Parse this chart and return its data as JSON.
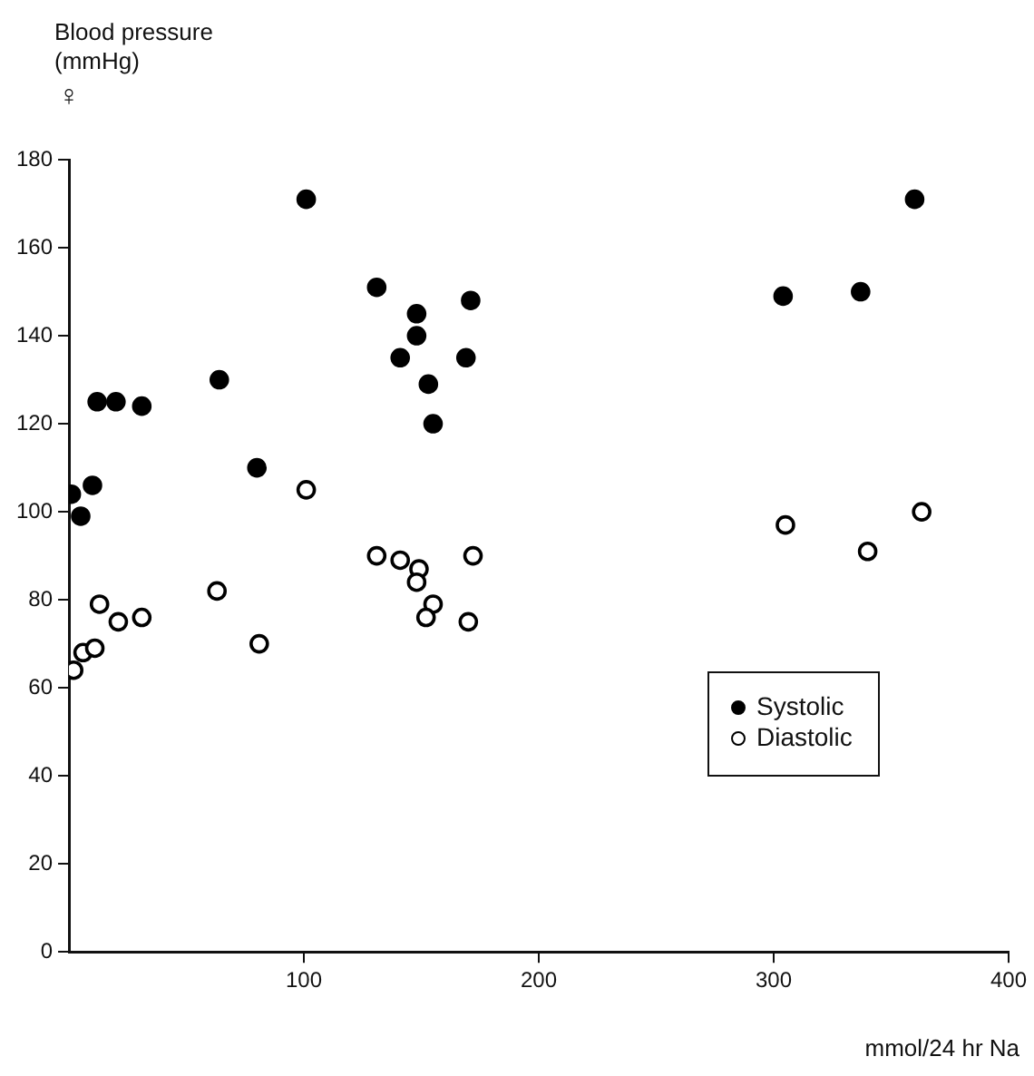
{
  "chart_data": {
    "type": "scatter",
    "ylabel": "Blood pressure (mmHg)",
    "xlabel": "mmol/24 hr Na",
    "annotations": [
      "♀"
    ],
    "xlim": [
      0,
      400
    ],
    "xticks": [
      100,
      200,
      300,
      400
    ],
    "ylim": [
      0,
      180
    ],
    "yticks": [
      0,
      20,
      40,
      60,
      80,
      100,
      120,
      140,
      160,
      180
    ],
    "grid": false,
    "legend": "right",
    "marker": "circle",
    "series": [
      {
        "name": "Systolic",
        "color": "#000000",
        "x": [
          1,
          5,
          10,
          12,
          20,
          31,
          64,
          80,
          101,
          131,
          171,
          148,
          148,
          141,
          169,
          153,
          155,
          304,
          337,
          360
        ],
        "values": [
          104,
          99,
          106,
          125,
          125,
          124,
          130,
          110,
          171,
          151,
          148,
          145,
          140,
          135,
          135,
          129,
          120,
          149,
          150,
          171
        ]
      },
      {
        "name": "Diastolic",
        "color": "#000000",
        "x": [
          2,
          6,
          11,
          13,
          21,
          31,
          63,
          81,
          101,
          131,
          141,
          149,
          148,
          155,
          152,
          172,
          170,
          305,
          340,
          363
        ],
        "values": [
          64,
          68,
          69,
          79,
          75,
          76,
          82,
          70,
          105,
          90,
          89,
          87,
          84,
          79,
          76,
          90,
          75,
          97,
          91,
          100
        ]
      }
    ]
  }
}
